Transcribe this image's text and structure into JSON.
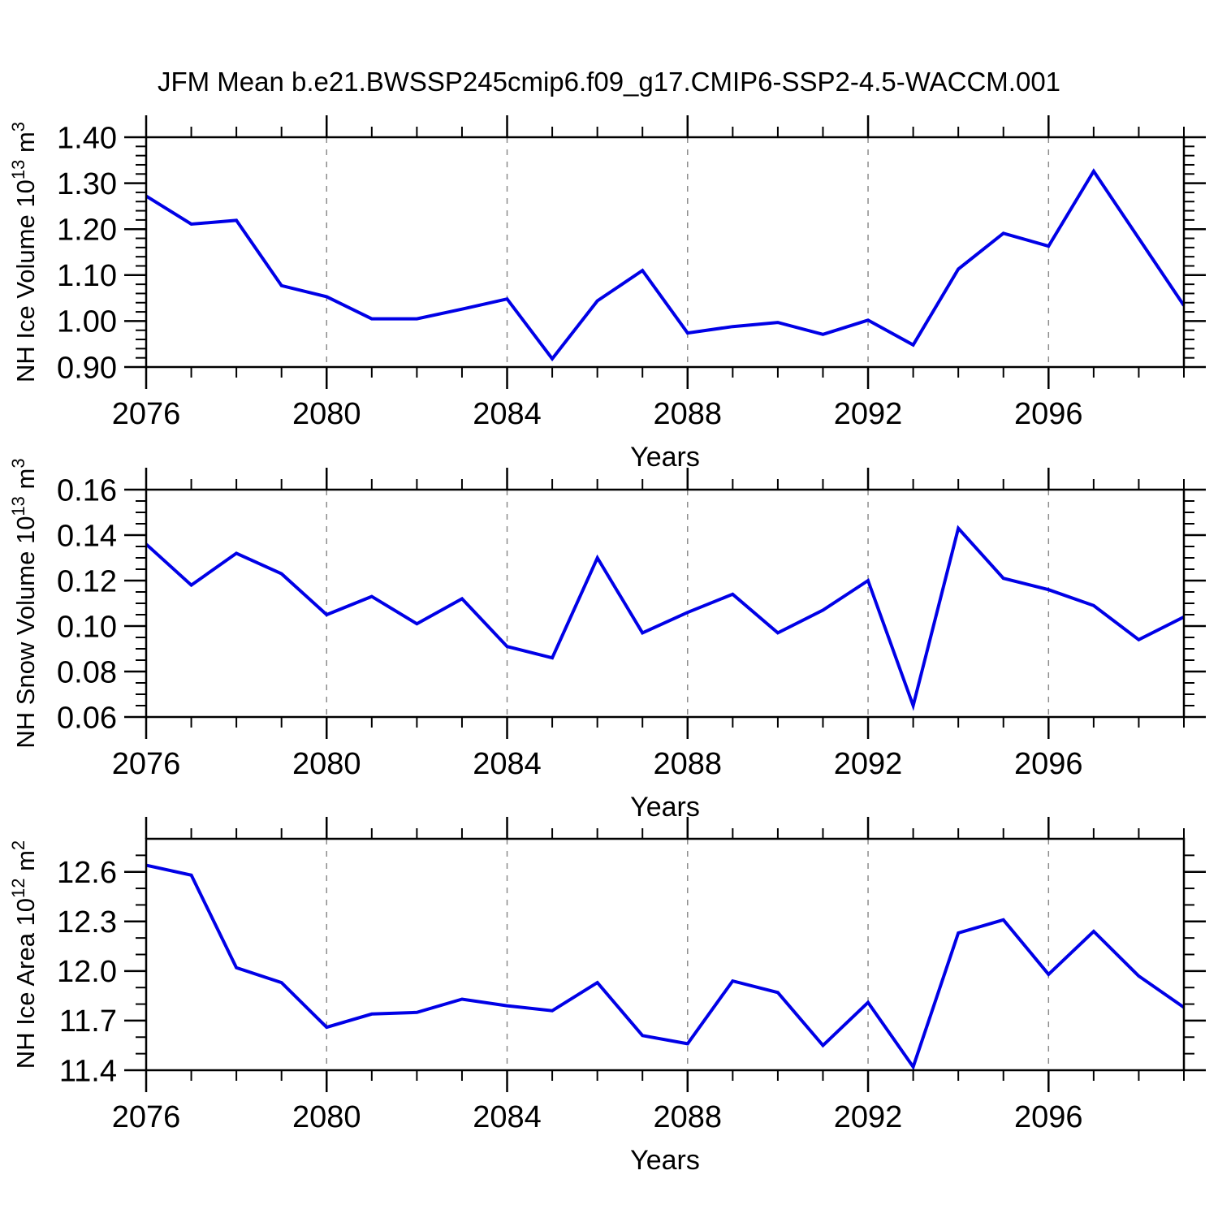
{
  "title": "JFM Mean b.e21.BWSSP245cmip6.f09_g17.CMIP6-SSP2-4.5-WACCM.001",
  "style": {
    "line_color": "#0000e6",
    "grid_color": "#8c8c8c",
    "axis_color": "#000000",
    "background": "#ffffff"
  },
  "x_axis": {
    "label": "Years",
    "range": [
      2076,
      2099
    ],
    "minor_step": 1,
    "major_step": 4,
    "x_tick_labels": [
      "2076",
      "2080",
      "2084",
      "2088",
      "2092",
      "2096"
    ],
    "dashed_gridlines": [
      2080,
      2084,
      2088,
      2092,
      2096
    ]
  },
  "chart_data": [
    {
      "type": "line",
      "panel": "top",
      "ylabel": "NH Ice Volume 10^13 m^3",
      "xlabel": "Years",
      "ylim": [
        0.9,
        1.4
      ],
      "ytick_step": 0.1,
      "yminor_step": 0.02,
      "y_tick_labels": [
        "0.90",
        "1.00",
        "1.10",
        "1.20",
        "1.30",
        "1.40"
      ],
      "grid": "vertical-dashed",
      "legend": "none",
      "x": [
        2076,
        2077,
        2078,
        2079,
        2080,
        2081,
        2082,
        2083,
        2084,
        2085,
        2086,
        2087,
        2088,
        2089,
        2090,
        2091,
        2092,
        2093,
        2094,
        2095,
        2096,
        2097,
        2098,
        2099
      ],
      "values": [
        1.272,
        1.211,
        1.219,
        1.077,
        1.053,
        1.005,
        1.005,
        1.026,
        1.048,
        0.918,
        1.044,
        1.11,
        0.974,
        0.988,
        0.997,
        0.971,
        1.002,
        0.948,
        1.113,
        1.191,
        1.163,
        1.326,
        1.18,
        1.034
      ]
    },
    {
      "type": "line",
      "panel": "middle",
      "ylabel": "NH Snow Volume 10^13 m^3",
      "xlabel": "Years",
      "ylim": [
        0.06,
        0.16
      ],
      "ytick_step": 0.02,
      "yminor_step": 0.005,
      "y_tick_labels": [
        "0.06",
        "0.08",
        "0.10",
        "0.12",
        "0.14",
        "0.16"
      ],
      "grid": "vertical-dashed",
      "legend": "none",
      "x": [
        2076,
        2077,
        2078,
        2079,
        2080,
        2081,
        2082,
        2083,
        2084,
        2085,
        2086,
        2087,
        2088,
        2089,
        2090,
        2091,
        2092,
        2093,
        2094,
        2095,
        2096,
        2097,
        2098,
        2099
      ],
      "values": [
        0.136,
        0.118,
        0.132,
        0.123,
        0.105,
        0.113,
        0.101,
        0.112,
        0.091,
        0.086,
        0.13,
        0.097,
        0.106,
        0.114,
        0.097,
        0.107,
        0.12,
        0.065,
        0.143,
        0.121,
        0.116,
        0.109,
        0.094,
        0.104
      ]
    },
    {
      "type": "line",
      "panel": "bottom",
      "ylabel": "NH Ice Area 10^12 m^2",
      "xlabel": "Years",
      "ylim": [
        11.4,
        12.8
      ],
      "ytick_step": 0.3,
      "yminor_step": 0.1,
      "y_tick_labels": [
        "11.4",
        "11.7",
        "12.0",
        "12.3",
        "12.6"
      ],
      "grid": "vertical-dashed",
      "legend": "none",
      "x": [
        2076,
        2077,
        2078,
        2079,
        2080,
        2081,
        2082,
        2083,
        2084,
        2085,
        2086,
        2087,
        2088,
        2089,
        2090,
        2091,
        2092,
        2093,
        2094,
        2095,
        2096,
        2097,
        2098,
        2099
      ],
      "values": [
        12.64,
        12.58,
        12.02,
        11.93,
        11.66,
        11.74,
        11.75,
        11.83,
        11.79,
        11.76,
        11.93,
        11.61,
        11.56,
        11.94,
        11.87,
        11.55,
        11.81,
        11.42,
        12.23,
        12.31,
        11.98,
        12.24,
        11.97,
        11.78
      ]
    }
  ]
}
